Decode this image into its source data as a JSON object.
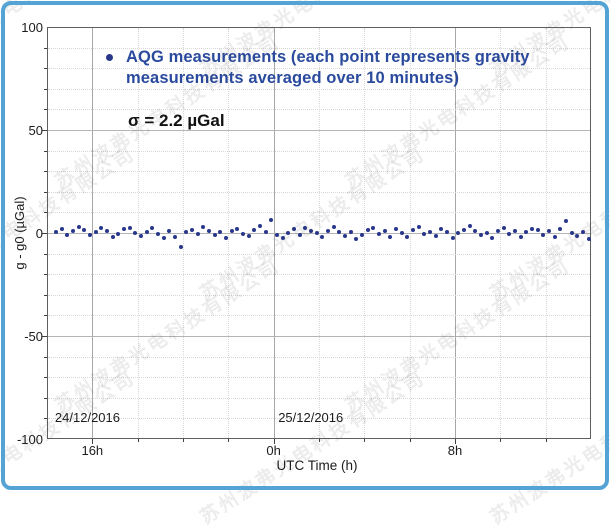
{
  "window": {
    "background": "#ffffff",
    "frame_border_color": "#54a3d5"
  },
  "watermark": {
    "text": "苏州波弗光电科技有限公司"
  },
  "chart_data": {
    "type": "scatter",
    "title": "",
    "xlabel": "UTC Time (h)",
    "ylabel": "g - g0 (µGal)",
    "xlim_hours_from_midnight": [
      -10,
      14
    ],
    "ylim": [
      -100,
      100
    ],
    "x_major_ticks": [
      {
        "value": -8,
        "label": "16h"
      },
      {
        "value": 0,
        "label": "0h"
      },
      {
        "value": 8,
        "label": "8h"
      }
    ],
    "x_minor_step_hours": 2,
    "y_major_ticks": [
      {
        "value": 100,
        "label": "100"
      },
      {
        "value": 50,
        "label": "50"
      },
      {
        "value": 0,
        "label": "0"
      },
      {
        "value": -50,
        "label": "-50"
      },
      {
        "value": -100,
        "label": "-100"
      }
    ],
    "y_minor_step": 10,
    "grid": "major and minor, dotted gray",
    "legend": {
      "marker": "filled-circle",
      "marker_color": "#28378c",
      "text_color": "#2a4a9e",
      "position": "upper-left-inside",
      "label": "AQG measurements (each point represents gravity measurements averaged over 10 minutes)",
      "label_lines": [
        "AQG measurements (each point represents gravity",
        "measurements averaged over 10 minutes)"
      ]
    },
    "annotation_sigma": "σ = 2.2 µGal",
    "date_labels": [
      {
        "label": "24/12/2016",
        "x_hours": -9.65
      },
      {
        "label": "25/12/2016",
        "x_hours": 0.2
      }
    ],
    "series": [
      {
        "name": "AQG measurements",
        "color": "#28378c",
        "marker_diameter_px": 4,
        "x_start_hours": -9.6,
        "x_step_hours": 0.25,
        "y_ugal": [
          0.5,
          2.1,
          -0.8,
          1.2,
          3.0,
          1.5,
          -1.2,
          0.3,
          2.4,
          0.8,
          -2.0,
          -0.5,
          1.8,
          2.6,
          0.2,
          -1.5,
          0.7,
          2.2,
          -0.3,
          -2.6,
          1.0,
          -1.8,
          -7.0,
          0.4,
          1.6,
          -0.6,
          2.8,
          1.2,
          -1.0,
          0.5,
          -2.2,
          0.9,
          2.0,
          -0.4,
          -1.6,
          1.4,
          3.2,
          0.6,
          6.3,
          -0.8,
          -2.4,
          0.2,
          1.8,
          -1.2,
          2.5,
          0.8,
          -0.2,
          -1.9,
          1.1,
          2.9,
          0.3,
          -1.4,
          0.6,
          -2.8,
          -0.9,
          1.5,
          2.3,
          -0.5,
          0.9,
          -1.7,
          1.9,
          0.1,
          -2.1,
          1.3,
          2.7,
          -0.7,
          0.4,
          -1.3,
          2.1,
          0.7,
          -2.5,
          -0.1,
          1.6,
          3.4,
          0.9,
          -1.1,
          0.2,
          -2.3,
          1.0,
          2.4,
          -0.6,
          1.2,
          -1.8,
          0.5,
          2.0,
          1.4,
          -0.9,
          0.8,
          -2.0,
          1.7,
          6.0,
          0.1,
          -1.5,
          0.6,
          -3.0
        ]
      }
    ]
  }
}
